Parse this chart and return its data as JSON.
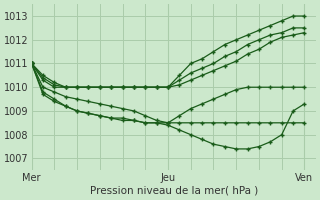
{
  "bg_color": "#cce8cc",
  "grid_color": "#aaccaa",
  "line_color": "#1a5c1a",
  "xtick_labels": [
    "Mer",
    "Jeu",
    "Ven"
  ],
  "xtick_positions": [
    0,
    12,
    24
  ],
  "ytick_values": [
    1007,
    1008,
    1009,
    1010,
    1011,
    1012,
    1013
  ],
  "ylim": [
    1006.5,
    1013.5
  ],
  "xlim": [
    0,
    25
  ],
  "xlabel": "Pression niveau de la mer( hPa )",
  "series": [
    [
      1011.0,
      1010.5,
      1010.2,
      1010.0,
      1010.0,
      1010.0,
      1010.0,
      1010.0,
      1010.0,
      1010.0,
      1010.0,
      1010.0,
      1010.0,
      1010.5,
      1011.0,
      1011.2,
      1011.5,
      1011.8,
      1012.0,
      1012.2,
      1012.4,
      1012.6,
      1012.8,
      1013.0,
      1013.0
    ],
    [
      1011.0,
      1010.4,
      1010.1,
      1010.0,
      1010.0,
      1010.0,
      1010.0,
      1010.0,
      1010.0,
      1010.0,
      1010.0,
      1010.0,
      1010.0,
      1010.3,
      1010.6,
      1010.8,
      1011.0,
      1011.3,
      1011.5,
      1011.8,
      1012.0,
      1012.2,
      1012.3,
      1012.5,
      1012.5
    ],
    [
      1011.0,
      1010.3,
      1010.0,
      1010.0,
      1010.0,
      1010.0,
      1010.0,
      1010.0,
      1010.0,
      1010.0,
      1010.0,
      1010.0,
      1010.0,
      1010.1,
      1010.3,
      1010.5,
      1010.7,
      1010.9,
      1011.1,
      1011.4,
      1011.6,
      1011.9,
      1012.1,
      1012.2,
      1012.3
    ],
    [
      1011.0,
      1010.0,
      1009.8,
      1009.6,
      1009.5,
      1009.4,
      1009.3,
      1009.2,
      1009.1,
      1009.0,
      1008.8,
      1008.6,
      1008.5,
      1008.8,
      1009.1,
      1009.3,
      1009.5,
      1009.7,
      1009.9,
      1010.0,
      1010.0,
      1010.0,
      1010.0,
      1010.0,
      1010.0
    ],
    [
      1011.0,
      1009.8,
      1009.5,
      1009.2,
      1009.0,
      1008.9,
      1008.8,
      1008.7,
      1008.7,
      1008.6,
      1008.5,
      1008.5,
      1008.5,
      1008.5,
      1008.5,
      1008.5,
      1008.5,
      1008.5,
      1008.5,
      1008.5,
      1008.5,
      1008.5,
      1008.5,
      1008.5,
      1008.5
    ],
    [
      1011.0,
      1009.7,
      1009.4,
      1009.2,
      1009.0,
      1008.9,
      1008.8,
      1008.7,
      1008.6,
      1008.6,
      1008.5,
      1008.5,
      1008.4,
      1008.2,
      1008.0,
      1007.8,
      1007.6,
      1007.5,
      1007.4,
      1007.4,
      1007.5,
      1007.7,
      1008.0,
      1009.0,
      1009.3
    ]
  ]
}
